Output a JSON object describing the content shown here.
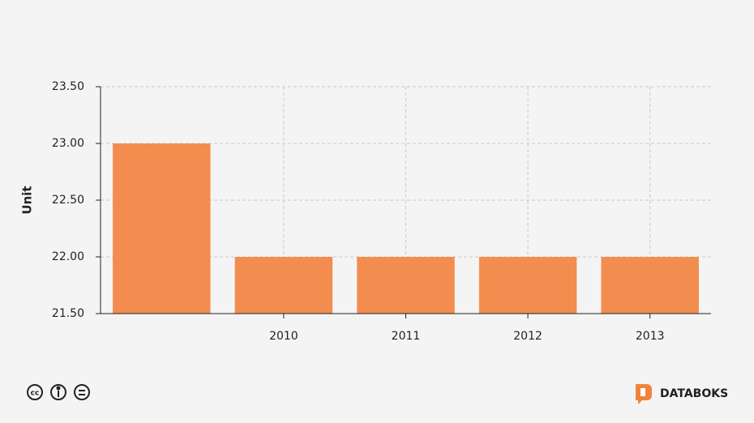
{
  "chart_data": {
    "type": "bar",
    "y_label": "Unit",
    "categories": [
      null,
      "2010",
      "2011",
      "2012",
      "2013"
    ],
    "values": [
      23,
      22,
      22,
      22,
      22
    ],
    "color": "#f38d4f",
    "ylim": [
      21.5,
      23.5
    ],
    "yticks": [
      {
        "value": 21.5,
        "label": "21.50"
      },
      {
        "value": 22,
        "label": "22.00"
      },
      {
        "value": 22.5,
        "label": "22.50"
      },
      {
        "value": 23,
        "label": "23.00"
      },
      {
        "value": 23.5,
        "label": "23.50"
      }
    ],
    "grid": true
  },
  "footer": {
    "brand": "DATABOKS"
  }
}
